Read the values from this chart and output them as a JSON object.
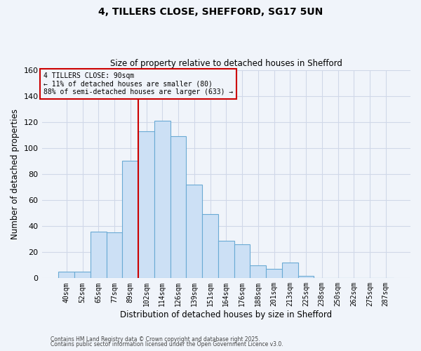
{
  "title": "4, TILLERS CLOSE, SHEFFORD, SG17 5UN",
  "subtitle": "Size of property relative to detached houses in Shefford",
  "xlabel": "Distribution of detached houses by size in Shefford",
  "ylabel": "Number of detached properties",
  "bar_labels": [
    "40sqm",
    "52sqm",
    "65sqm",
    "77sqm",
    "89sqm",
    "102sqm",
    "114sqm",
    "126sqm",
    "139sqm",
    "151sqm",
    "164sqm",
    "176sqm",
    "188sqm",
    "201sqm",
    "213sqm",
    "225sqm",
    "238sqm",
    "250sqm",
    "262sqm",
    "275sqm",
    "287sqm"
  ],
  "bar_values": [
    5,
    5,
    36,
    35,
    90,
    113,
    121,
    109,
    72,
    49,
    29,
    26,
    10,
    7,
    12,
    2,
    0,
    0,
    0,
    0,
    0
  ],
  "bar_color": "#cce0f5",
  "bar_edge_color": "#6aaad4",
  "property_line_color": "#cc0000",
  "property_line_index": 4.5,
  "annotation_line1": "4 TILLERS CLOSE: 90sqm",
  "annotation_line2": "← 11% of detached houses are smaller (80)",
  "annotation_line3": "88% of semi-detached houses are larger (633) →",
  "annotation_box_edge": "#cc0000",
  "ylim": [
    0,
    160
  ],
  "yticks": [
    0,
    20,
    40,
    60,
    80,
    100,
    120,
    140,
    160
  ],
  "grid_color": "#d0d8e8",
  "background_color": "#f0f4fa",
  "footer1": "Contains HM Land Registry data © Crown copyright and database right 2025.",
  "footer2": "Contains public sector information licensed under the Open Government Licence v3.0."
}
